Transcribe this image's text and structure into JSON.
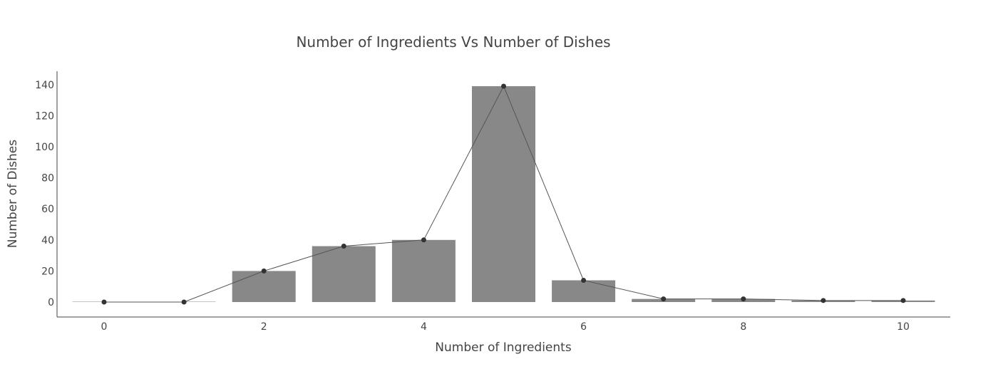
{
  "chart_data": {
    "type": "bar",
    "title": "Number of Ingredients Vs Number of Dishes",
    "xlabel": "Number of Ingredients",
    "ylabel": "Number of Dishes",
    "x": [
      0,
      1,
      2,
      3,
      4,
      5,
      6,
      7,
      8,
      9,
      10
    ],
    "values": [
      0,
      0,
      20,
      36,
      40,
      139,
      14,
      2,
      2,
      1,
      1
    ],
    "xlim": [
      -0.6,
      10.6
    ],
    "ylim": [
      -10,
      149
    ],
    "xticks": [
      0,
      2,
      4,
      6,
      8,
      10
    ],
    "yticks": [
      0,
      20,
      40,
      60,
      80,
      100,
      120,
      140
    ],
    "overlay": "line with markers",
    "grid": false,
    "colors": {
      "bar": "#888888",
      "line": "#555555",
      "marker": "#333333",
      "text": "#444444"
    }
  }
}
